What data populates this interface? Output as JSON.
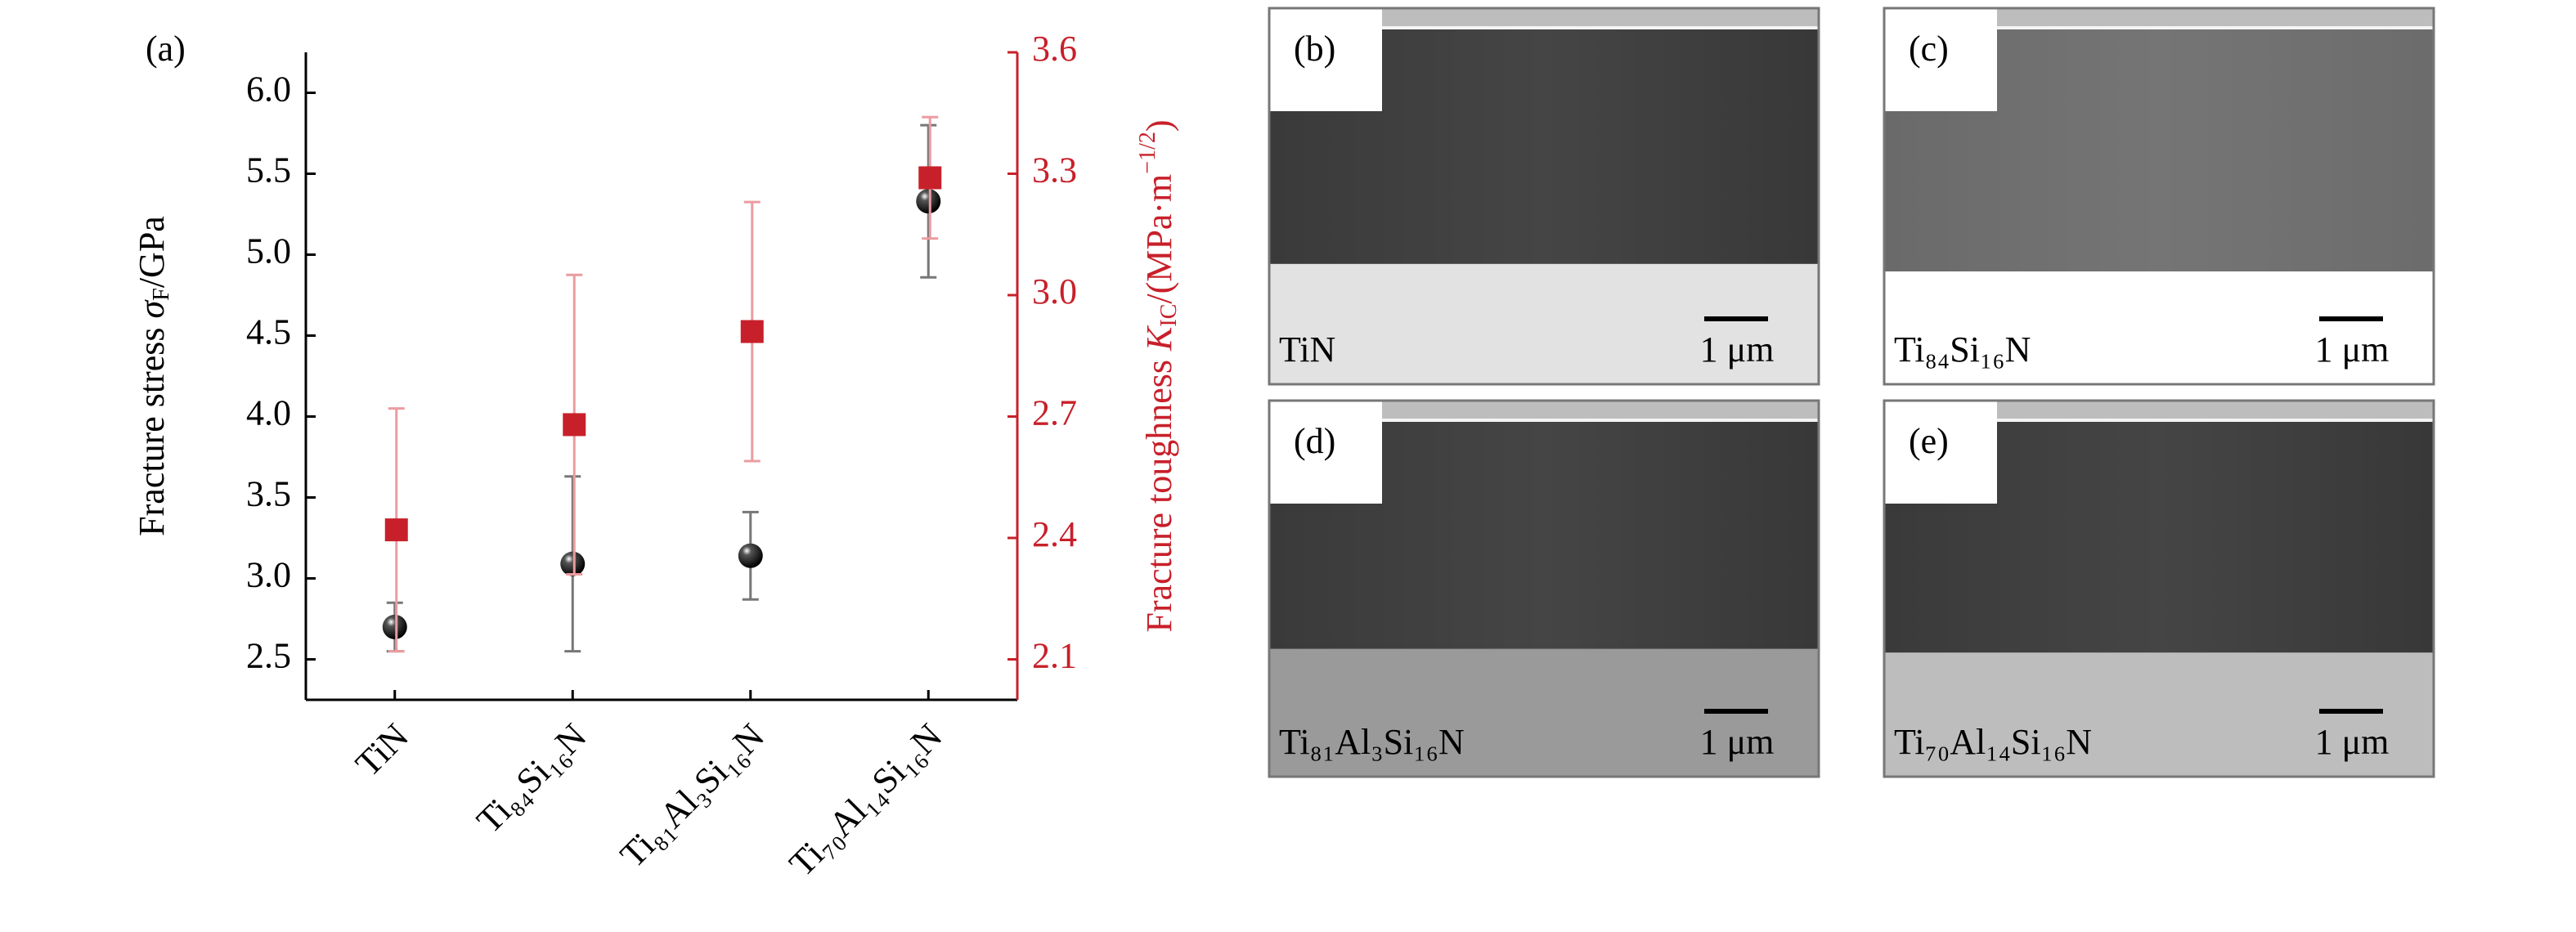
{
  "chart_data": {
    "type": "errorbar",
    "panel_label": "(a)",
    "ylabel": [
      "Fracture stress ",
      "σ",
      "F",
      "/GPa"
    ],
    "y2label": [
      "Fracture toughness ",
      "K",
      "IC",
      "/(MPa·m",
      "−1/2",
      ")"
    ],
    "categories": [
      "TiN",
      "Ti₈₄Si₁₆N",
      "Ti₈₁Al₃Si₁₆N",
      "Ti₇₀Al₁₄Si₁₆N"
    ],
    "series": [
      {
        "color": "#000000",
        "values": [
          2.7,
          3.09,
          3.14,
          5.33
        ],
        "errors": [
          0.15,
          0.54,
          0.27,
          0.47
        ]
      },
      {
        "color": "#c8202a",
        "axis": "y2",
        "values": [
          2.42,
          2.68,
          2.91,
          3.29
        ],
        "errors": [
          0.3,
          0.37,
          0.32,
          0.15
        ]
      }
    ],
    "ylim": [
      2.25,
      6.25
    ],
    "yticks": [
      2.5,
      {
        "value": 3,
        "label": "3.0"
      },
      3.5,
      {
        "value": 4,
        "label": "4.0"
      },
      4.5,
      {
        "value": 5,
        "label": "5.0"
      },
      5.5,
      {
        "value": 6,
        "label": "6.0"
      }
    ],
    "y2lim": [
      2.0,
      3.6
    ],
    "y2ticks": [
      2.1,
      2.4,
      2.7,
      {
        "value": 3,
        "label": "3.0"
      },
      3.3,
      3.6
    ]
  },
  "micrographs": [
    {
      "label": "(b)",
      "caption": "TiN",
      "scale_bar": "1 μm"
    },
    {
      "label": "(c)",
      "caption": "Ti₈₄Si₁₆N",
      "scale_bar": "1 μm"
    },
    {
      "label": "(d)",
      "caption": "Ti₈₁Al₃Si₁₆N",
      "scale_bar": "1 μm"
    },
    {
      "label": "(e)",
      "caption": "Ti₇₀Al₁₄Si₁₆N",
      "scale_bar": "1 μm"
    }
  ]
}
